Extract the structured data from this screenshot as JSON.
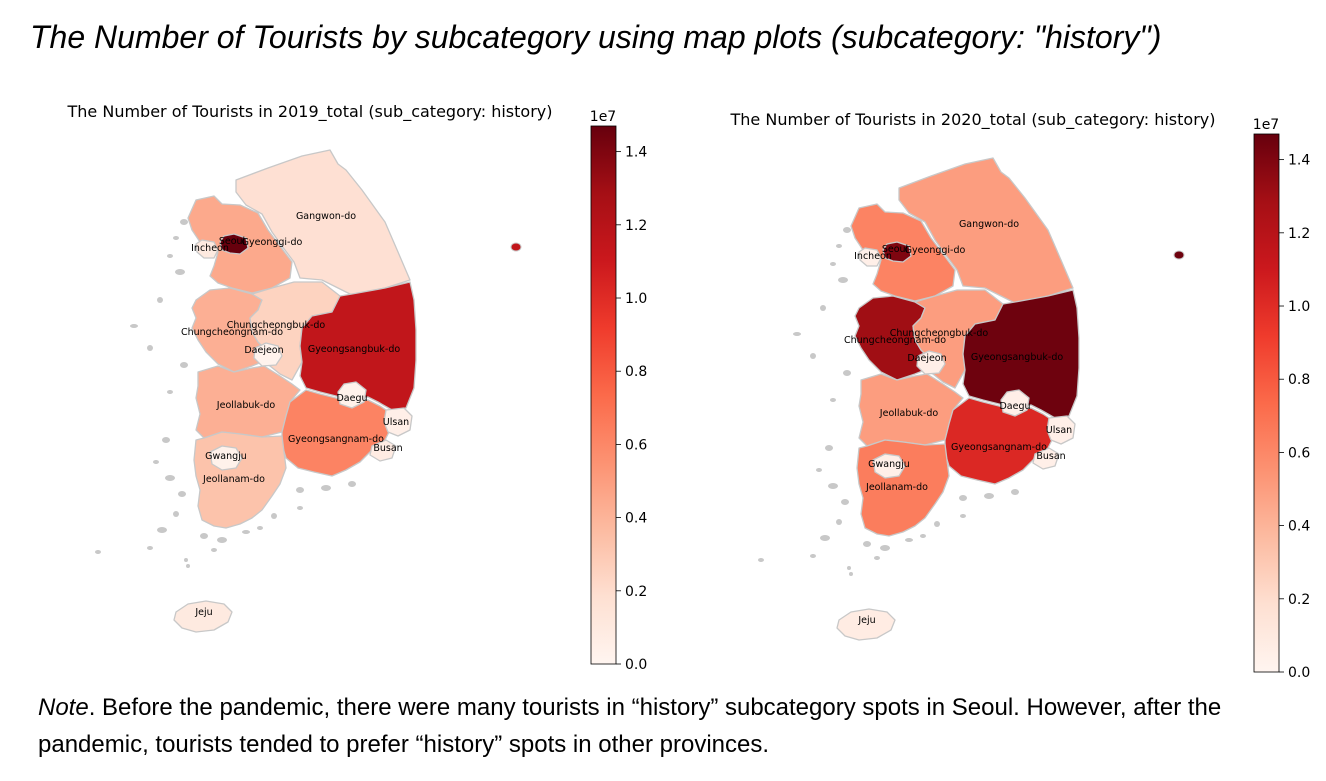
{
  "figure": {
    "title": "The Number of Tourists by subcategory using map plots (subcategory: \"history\")"
  },
  "colorscale": {
    "name": "Reds",
    "exponent_label": "1e7",
    "min": 0.0,
    "max": 1.47,
    "ticks": [
      "0.0",
      "0.2",
      "0.4",
      "0.6",
      "0.8",
      "1.0",
      "1.2",
      "1.4"
    ],
    "tick_values": [
      0.0,
      0.2,
      0.4,
      0.6,
      0.8,
      1.0,
      1.2,
      1.4
    ],
    "colors": [
      "#fff5f0",
      "#fee0d2",
      "#fcbba1",
      "#fc9272",
      "#fb6a4a",
      "#ef3b2c",
      "#cb181d",
      "#a50f15",
      "#67000d"
    ],
    "border_color": "#c8c8c8"
  },
  "chart_data": [
    {
      "type": "choropleth",
      "title": "The Number of Tourists in 2019_total (sub_category: history)",
      "unit_exponent": "1e7",
      "regions": [
        {
          "name": "Seoul",
          "value": 1.47
        },
        {
          "name": "Incheon",
          "value": 0.1
        },
        {
          "name": "Gyeonggi-do",
          "value": 0.45
        },
        {
          "name": "Gangwon-do",
          "value": 0.18
        },
        {
          "name": "Chungcheongbuk-do",
          "value": 0.25
        },
        {
          "name": "Chungcheongnam-do",
          "value": 0.42
        },
        {
          "name": "Daejeon",
          "value": 0.02
        },
        {
          "name": "Gyeongsangbuk-do",
          "value": 1.15
        },
        {
          "name": "Daegu",
          "value": 0.03
        },
        {
          "name": "Jeollabuk-do",
          "value": 0.42
        },
        {
          "name": "Ulsan",
          "value": 0.05
        },
        {
          "name": "Gyeongsangnam-do",
          "value": 0.62
        },
        {
          "name": "Busan",
          "value": 0.08
        },
        {
          "name": "Gwangju",
          "value": 0.03
        },
        {
          "name": "Jeollanam-do",
          "value": 0.33
        },
        {
          "name": "Jeju",
          "value": 0.1
        }
      ]
    },
    {
      "type": "choropleth",
      "title": "The Number of Tourists in 2020_total (sub_category: history)",
      "unit_exponent": "1e7",
      "regions": [
        {
          "name": "Seoul",
          "value": 1.4
        },
        {
          "name": "Incheon",
          "value": 0.05
        },
        {
          "name": "Gyeonggi-do",
          "value": 0.62
        },
        {
          "name": "Gangwon-do",
          "value": 0.5
        },
        {
          "name": "Chungcheongbuk-do",
          "value": 0.5
        },
        {
          "name": "Chungcheongnam-do",
          "value": 1.3
        },
        {
          "name": "Daejeon",
          "value": 0.05
        },
        {
          "name": "Gyeongsangbuk-do",
          "value": 1.45
        },
        {
          "name": "Daegu",
          "value": 0.05
        },
        {
          "name": "Jeollabuk-do",
          "value": 0.5
        },
        {
          "name": "Ulsan",
          "value": 0.05
        },
        {
          "name": "Gyeongsangnam-do",
          "value": 1.02
        },
        {
          "name": "Busan",
          "value": 0.05
        },
        {
          "name": "Gwangju",
          "value": 0.05
        },
        {
          "name": "Jeollanam-do",
          "value": 0.65
        },
        {
          "name": "Jeju",
          "value": 0.08
        }
      ]
    }
  ],
  "note": {
    "label": "Note",
    "text": ". Before the pandemic, there were many tourists in “history” subcategory spots in Seoul. However, after the pandemic, tourists tended to prefer “history” spots in other provinces."
  }
}
